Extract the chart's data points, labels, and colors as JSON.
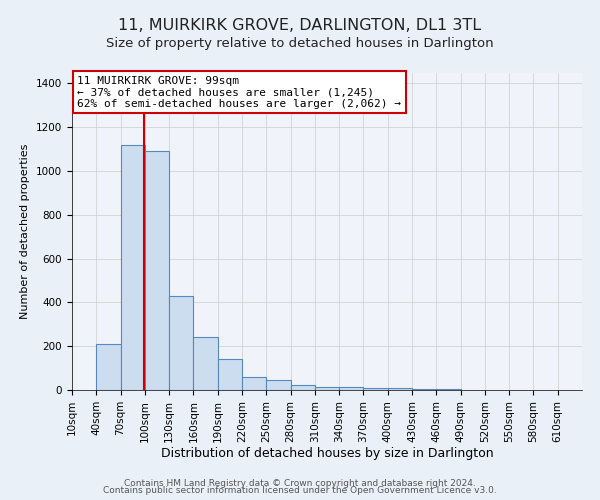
{
  "title1": "11, MUIRKIRK GROVE, DARLINGTON, DL1 3TL",
  "title2": "Size of property relative to detached houses in Darlington",
  "xlabel": "Distribution of detached houses by size in Darlington",
  "ylabel": "Number of detached properties",
  "footer1": "Contains HM Land Registry data © Crown copyright and database right 2024.",
  "footer2": "Contains public sector information licensed under the Open Government Licence v3.0.",
  "bin_labels": [
    "10sqm",
    "40sqm",
    "70sqm",
    "100sqm",
    "130sqm",
    "160sqm",
    "190sqm",
    "220sqm",
    "250sqm",
    "280sqm",
    "310sqm",
    "340sqm",
    "370sqm",
    "400sqm",
    "430sqm",
    "460sqm",
    "490sqm",
    "520sqm",
    "550sqm",
    "580sqm",
    "610sqm"
  ],
  "bin_edges": [
    10,
    40,
    70,
    100,
    130,
    160,
    190,
    220,
    250,
    280,
    310,
    340,
    370,
    400,
    430,
    460,
    490,
    520,
    550,
    580,
    610
  ],
  "bar_heights": [
    0,
    210,
    1120,
    1090,
    430,
    240,
    140,
    60,
    45,
    25,
    15,
    15,
    10,
    10,
    5,
    5,
    0,
    0,
    0,
    0
  ],
  "bar_color": "#ccddf0",
  "bar_edgecolor": "#5588bb",
  "property_size": 99,
  "red_line_color": "#cc0000",
  "annotation_line1": "11 MUIRKIRK GROVE: 99sqm",
  "annotation_line2": "← 37% of detached houses are smaller (1,245)",
  "annotation_line3": "62% of semi-detached houses are larger (2,062) →",
  "annotation_box_edgecolor": "#cc0000",
  "annotation_box_facecolor": "#ffffff",
  "ylim": [
    0,
    1450
  ],
  "yticks": [
    0,
    200,
    400,
    600,
    800,
    1000,
    1200,
    1400
  ],
  "grid_color": "#cccccc",
  "bg_color": "#eaf0f8",
  "plot_bg_color": "#f0f4fa",
  "title1_fontsize": 11.5,
  "title2_fontsize": 9.5,
  "xlabel_fontsize": 9,
  "ylabel_fontsize": 8,
  "tick_fontsize": 7.5,
  "annotation_fontsize": 8,
  "footer_fontsize": 6.5
}
